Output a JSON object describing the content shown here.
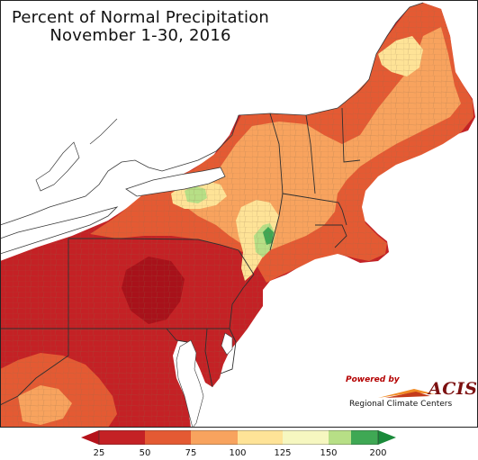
{
  "title": {
    "line1": "Percent of Normal Precipitation",
    "line2": "November 1-30, 2016"
  },
  "logo": {
    "powered_by": "Powered by",
    "brand": "ACIS",
    "subtitle": "Regional Climate Centers"
  },
  "legend": {
    "ticks": [
      "25",
      "50",
      "75",
      "100",
      "125",
      "150",
      "200"
    ],
    "colors": [
      "#c42125",
      "#e45a33",
      "#f8a35e",
      "#fee397",
      "#f6f7c0",
      "#b7df86",
      "#3fa854"
    ],
    "arrow_left_color": "#b5121b",
    "arrow_right_color": "#1a8a3a"
  },
  "map": {
    "background_color": "#ffffff",
    "water_color": "#ffffff",
    "border_color": "#3a3a3a",
    "county_color": "#9a7a55"
  }
}
